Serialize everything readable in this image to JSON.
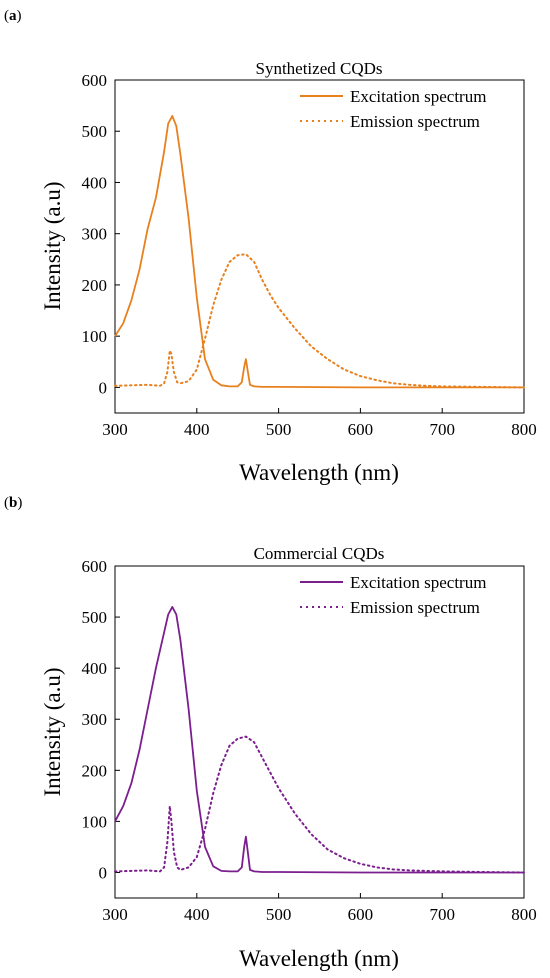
{
  "chart_data": [
    {
      "type": "line",
      "panel_label": "(a)",
      "panel_letter": "a",
      "title": "Synthetized CQDs",
      "xlabel": "Wavelength (nm)",
      "ylabel": "Intensity (a.u)",
      "xlim": [
        300,
        800
      ],
      "ylim": [
        -50,
        600
      ],
      "xticks": [
        300,
        400,
        500,
        600,
        700,
        800
      ],
      "yticks": [
        0,
        100,
        200,
        300,
        400,
        500,
        600
      ],
      "legend_position": "top-right",
      "color": "#E8801E",
      "series": [
        {
          "name": "Excitation spectrum",
          "style": "solid",
          "x": [
            300,
            310,
            320,
            330,
            340,
            350,
            360,
            365,
            370,
            375,
            380,
            390,
            400,
            410,
            420,
            430,
            440,
            450,
            455,
            458,
            460,
            462,
            465,
            470,
            480,
            500,
            600,
            700,
            800
          ],
          "y": [
            100,
            125,
            170,
            230,
            310,
            370,
            460,
            515,
            530,
            510,
            455,
            330,
            175,
            55,
            15,
            4,
            2,
            2,
            10,
            40,
            55,
            35,
            5,
            2,
            1,
            1,
            0,
            0,
            0
          ]
        },
        {
          "name": "Emission spectrum",
          "style": "dotted",
          "x": [
            300,
            340,
            355,
            360,
            364,
            367,
            369,
            372,
            376,
            380,
            390,
            400,
            410,
            420,
            430,
            440,
            450,
            460,
            470,
            480,
            490,
            500,
            520,
            540,
            560,
            580,
            600,
            620,
            640,
            660,
            680,
            700,
            750,
            800
          ],
          "y": [
            3,
            5,
            3,
            8,
            30,
            72,
            65,
            30,
            10,
            8,
            12,
            35,
            95,
            160,
            210,
            245,
            258,
            260,
            245,
            210,
            180,
            155,
            115,
            80,
            55,
            35,
            22,
            14,
            8,
            5,
            3,
            2,
            1,
            0
          ]
        }
      ]
    },
    {
      "type": "line",
      "panel_label": "(b)",
      "panel_letter": "b",
      "title": "Commercial CQDs",
      "xlabel": "Wavelength (nm)",
      "ylabel": "Intensity (a.u)",
      "xlim": [
        300,
        800
      ],
      "ylim": [
        -50,
        600
      ],
      "xticks": [
        300,
        400,
        500,
        600,
        700,
        800
      ],
      "yticks": [
        0,
        100,
        200,
        300,
        400,
        500,
        600
      ],
      "legend_position": "top-right",
      "color": "#7B1E8E",
      "series": [
        {
          "name": "Excitation spectrum",
          "style": "solid",
          "x": [
            300,
            310,
            320,
            330,
            340,
            350,
            360,
            365,
            370,
            375,
            380,
            390,
            400,
            410,
            420,
            430,
            440,
            450,
            455,
            458,
            460,
            462,
            465,
            470,
            480,
            500,
            600,
            700,
            800
          ],
          "y": [
            100,
            130,
            175,
            240,
            320,
            400,
            470,
            505,
            520,
            505,
            455,
            320,
            160,
            50,
            12,
            3,
            2,
            2,
            10,
            50,
            70,
            45,
            5,
            2,
            1,
            1,
            0,
            0,
            0
          ]
        },
        {
          "name": "Emission spectrum",
          "style": "dotted",
          "x": [
            300,
            340,
            355,
            360,
            364,
            367,
            369,
            372,
            376,
            380,
            390,
            400,
            410,
            420,
            430,
            440,
            450,
            460,
            470,
            480,
            490,
            500,
            520,
            540,
            560,
            580,
            600,
            620,
            640,
            660,
            680,
            700,
            750,
            800
          ],
          "y": [
            2,
            4,
            2,
            10,
            60,
            130,
            100,
            40,
            10,
            5,
            10,
            30,
            85,
            155,
            210,
            248,
            262,
            266,
            255,
            225,
            195,
            165,
            115,
            75,
            45,
            28,
            17,
            10,
            6,
            4,
            3,
            2,
            1,
            0
          ]
        }
      ]
    }
  ]
}
